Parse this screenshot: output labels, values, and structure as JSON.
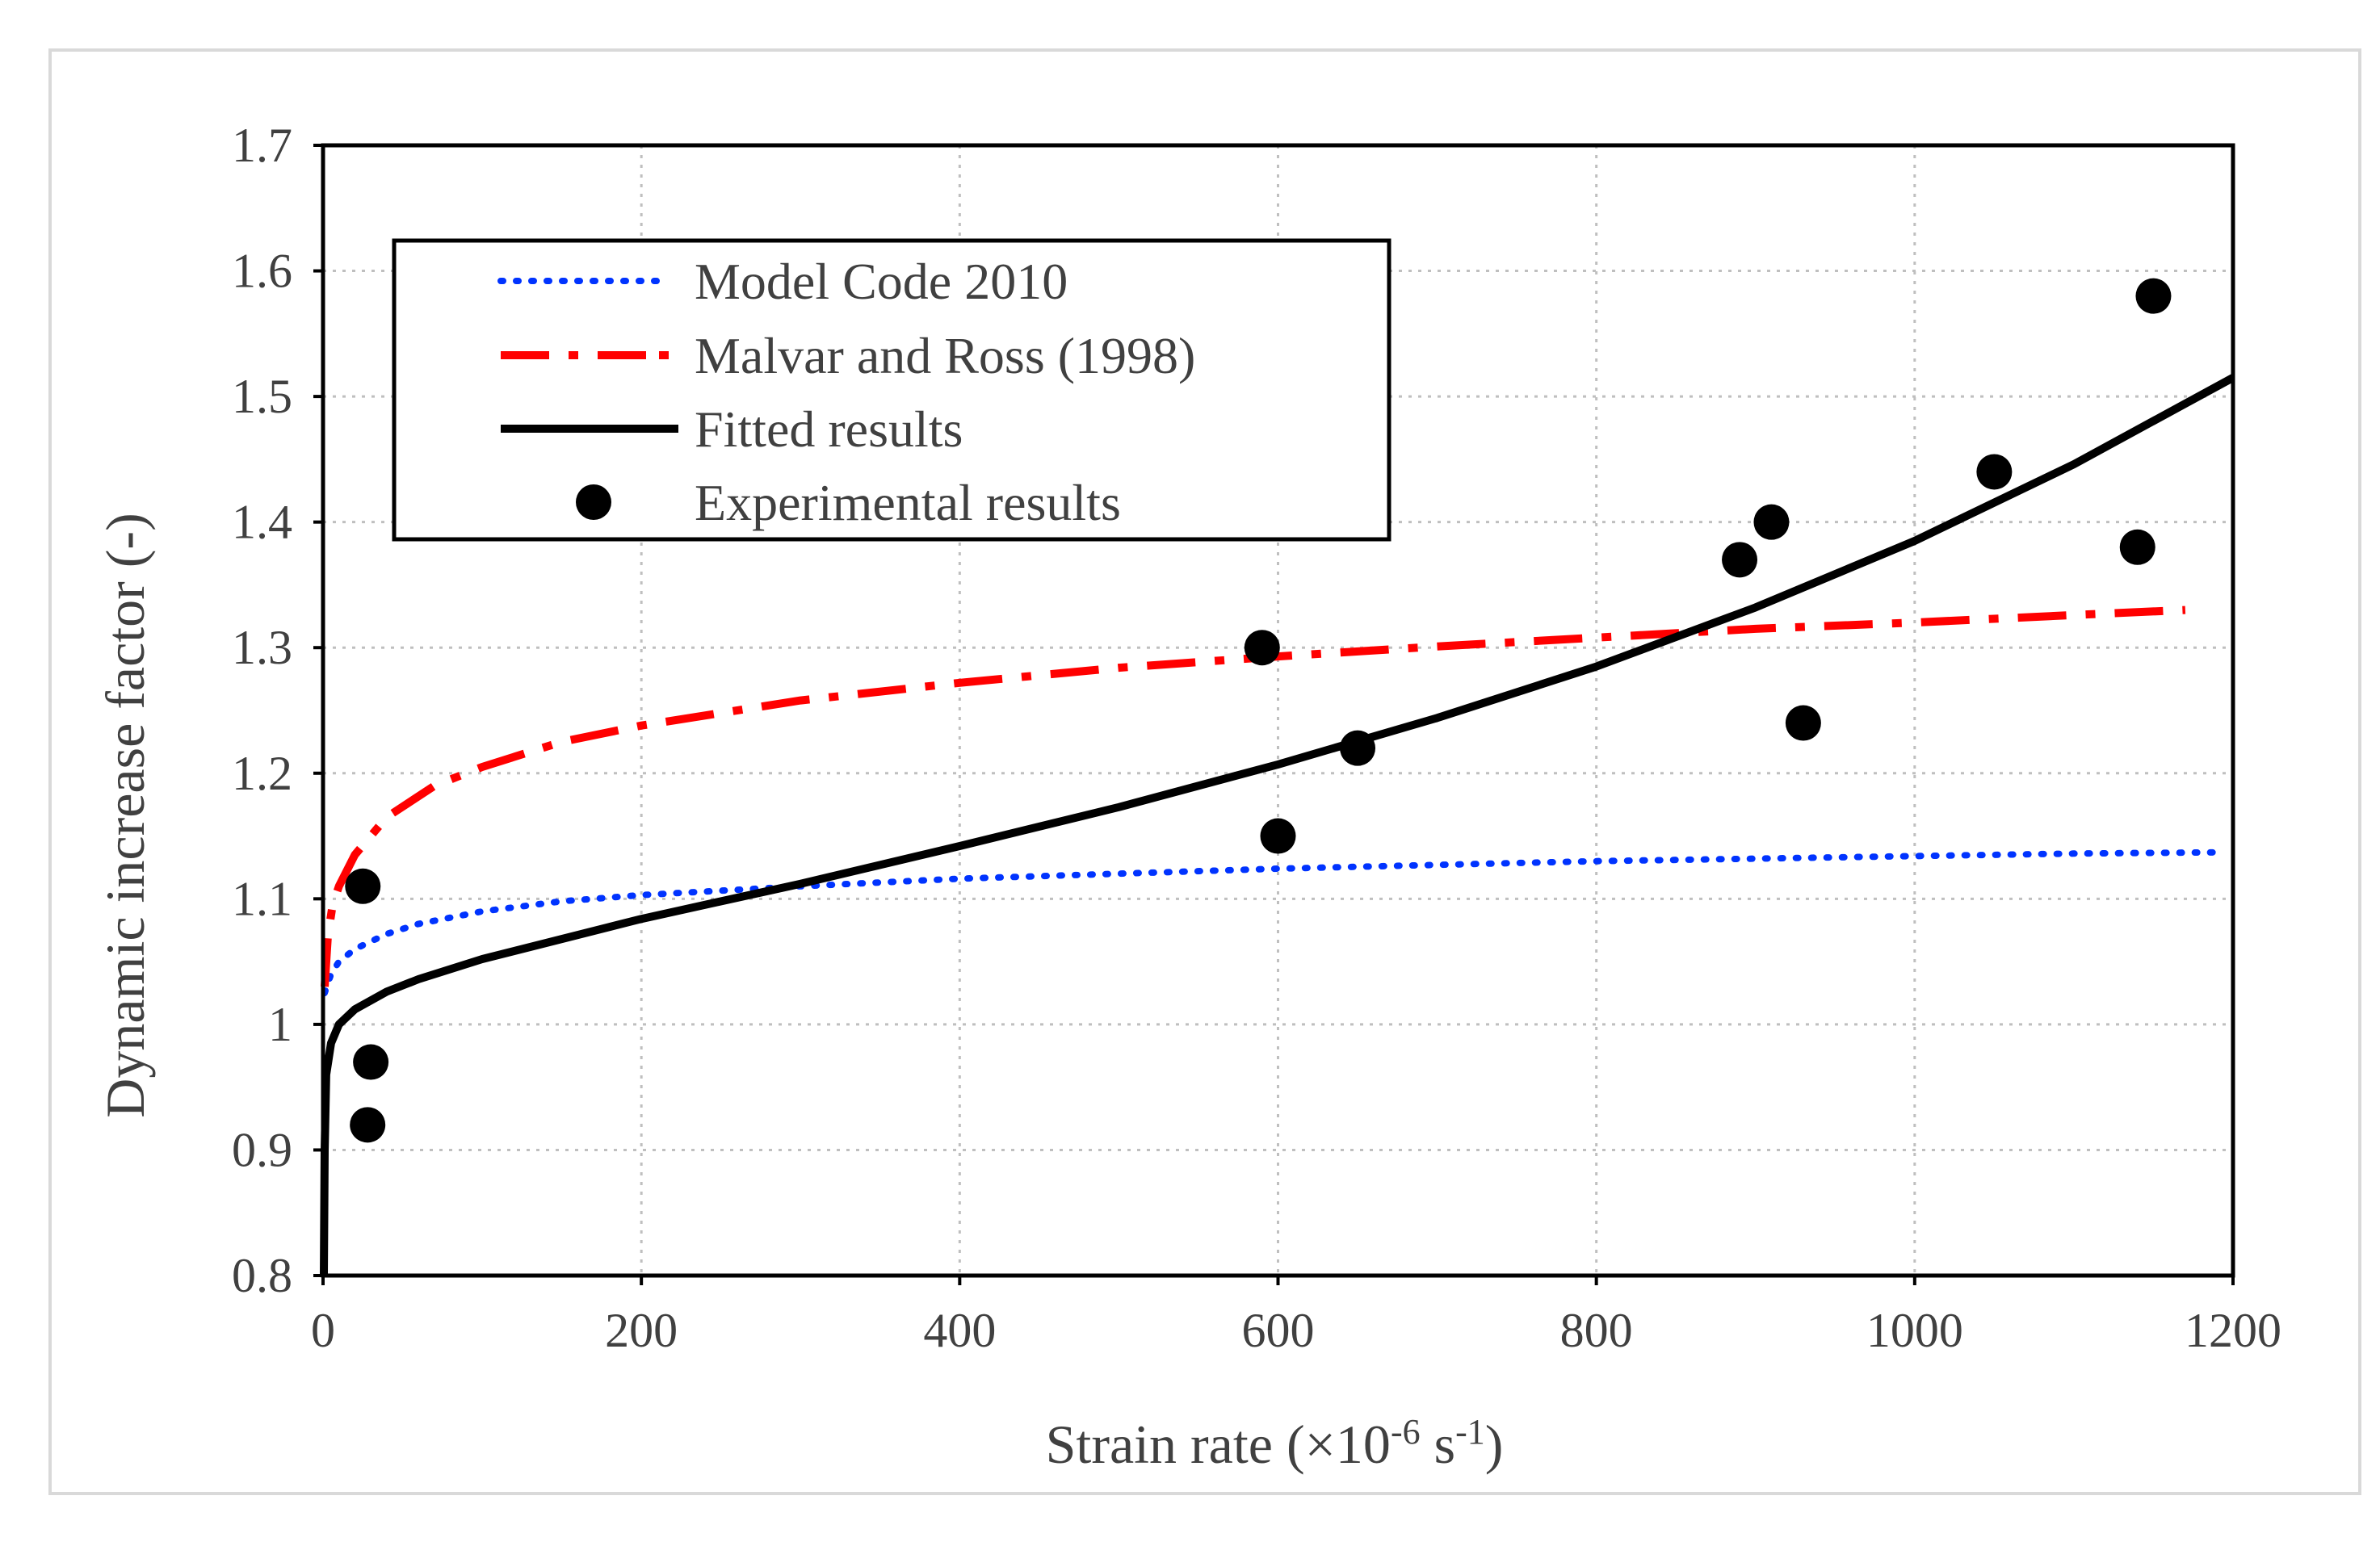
{
  "chart_data": {
    "type": "line",
    "title": "",
    "xlabel": "Strain rate (×10",
    "xlabel_exp1": "-6",
    "xlabel_mid": " s",
    "xlabel_exp2": "-1",
    "xlabel_end": ")",
    "ylabel": "Dynamic increase factor (-)",
    "xlim": [
      0,
      1200
    ],
    "ylim": [
      0.8,
      1.7
    ],
    "xticks": [
      0,
      200,
      400,
      600,
      800,
      1000,
      1200
    ],
    "xtick_labels": [
      "0",
      "200",
      "400",
      "600",
      "800",
      "1000",
      "1200"
    ],
    "yticks": [
      0.8,
      0.9,
      1.0,
      1.1,
      1.2,
      1.3,
      1.4,
      1.5,
      1.6,
      1.7
    ],
    "ytick_labels": [
      "0.8",
      "0.9",
      "1",
      "1.1",
      "1.2",
      "1.3",
      "1.4",
      "1.5",
      "1.6",
      "1.7"
    ],
    "grid": true,
    "legend_position": "top-left",
    "series": [
      {
        "name": "Model Code 2010",
        "style": "dotted",
        "color": "#0033ff",
        "x": [
          1,
          5,
          10,
          20,
          40,
          60,
          100,
          150,
          200,
          300,
          400,
          500,
          600,
          700,
          800,
          900,
          1000,
          1100,
          1190
        ],
        "y": [
          1.025,
          1.04,
          1.05,
          1.06,
          1.072,
          1.08,
          1.09,
          1.098,
          1.103,
          1.11,
          1.116,
          1.12,
          1.124,
          1.127,
          1.13,
          1.132,
          1.134,
          1.136,
          1.137
        ]
      },
      {
        "name": "Malvar and Ross (1998)",
        "style": "dash-dot",
        "color": "#ff0000",
        "x": [
          1,
          3,
          6,
          10,
          20,
          40,
          70,
          100,
          150,
          200,
          300,
          400,
          500,
          600,
          700,
          800,
          900,
          1000,
          1100,
          1170
        ],
        "y": [
          1.03,
          1.07,
          1.095,
          1.11,
          1.135,
          1.165,
          1.19,
          1.205,
          1.225,
          1.238,
          1.258,
          1.272,
          1.284,
          1.293,
          1.301,
          1.308,
          1.315,
          1.32,
          1.326,
          1.33
        ]
      },
      {
        "name": "Fitted results",
        "style": "solid",
        "color": "#000000",
        "x": [
          0.5,
          1,
          2,
          5,
          10,
          20,
          40,
          60,
          100,
          150,
          200,
          300,
          400,
          500,
          600,
          700,
          800,
          900,
          1000,
          1100,
          1200
        ],
        "y": [
          0.8,
          0.9,
          0.96,
          0.985,
          1.0,
          1.012,
          1.026,
          1.036,
          1.052,
          1.068,
          1.084,
          1.112,
          1.142,
          1.173,
          1.207,
          1.244,
          1.285,
          1.332,
          1.385,
          1.446,
          1.515
        ]
      }
    ],
    "scatter": {
      "name": "Experimental results",
      "color": "#000000",
      "points": [
        {
          "x": 25,
          "y": 1.11
        },
        {
          "x": 30,
          "y": 0.97
        },
        {
          "x": 28,
          "y": 0.92
        },
        {
          "x": 590,
          "y": 1.3
        },
        {
          "x": 600,
          "y": 1.15
        },
        {
          "x": 650,
          "y": 1.22
        },
        {
          "x": 890,
          "y": 1.37
        },
        {
          "x": 910,
          "y": 1.4
        },
        {
          "x": 930,
          "y": 1.24
        },
        {
          "x": 1050,
          "y": 1.44
        },
        {
          "x": 1140,
          "y": 1.38
        },
        {
          "x": 1150,
          "y": 1.58
        }
      ]
    }
  }
}
